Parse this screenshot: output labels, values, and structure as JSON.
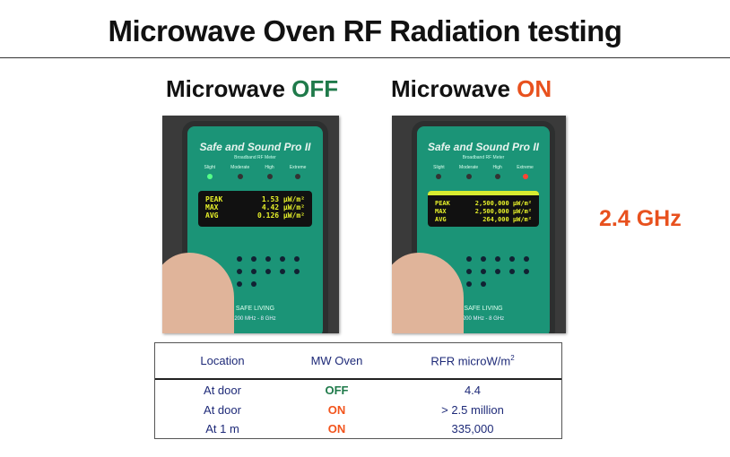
{
  "title": "Microwave Oven RF Radiation testing",
  "panels": [
    {
      "label_prefix": "Microwave ",
      "label_state": "OFF",
      "device_name": "Safe and Sound Pro II",
      "device_subtitle": "Broadband RF Meter",
      "leds": [
        "Slight",
        "Moderate",
        "High",
        "Extreme"
      ],
      "active_led": 0,
      "readings": [
        [
          "PEAK",
          "1.53 µW/m²"
        ],
        [
          "MAX",
          "4.42 µW/m²"
        ],
        [
          "AVG",
          "0.126 µW/m²"
        ]
      ],
      "brand": "SAFE LIVING",
      "range": "200 MHz - 8 GHz"
    },
    {
      "label_prefix": "Microwave ",
      "label_state": "ON",
      "device_name": "Safe and Sound Pro II",
      "device_subtitle": "Broadband RF Meter",
      "leds": [
        "Slight",
        "Moderate",
        "High",
        "Extreme"
      ],
      "active_led": 3,
      "readings": [
        [
          "PEAK",
          "2,500,000 µW/m²"
        ],
        [
          "MAX",
          "2,500,000 µW/m²"
        ],
        [
          "AVG",
          "264,000 µW/m²"
        ]
      ],
      "brand": "SAFE LIVING",
      "range": "200 MHz - 8 GHz"
    }
  ],
  "frequency": "2.4 GHz",
  "table": {
    "headers": [
      "Location",
      "MW Oven",
      "RFR microW/m",
      "2"
    ],
    "rows": [
      [
        "At door",
        "OFF",
        "4.4"
      ],
      [
        "At door",
        "ON",
        "> 2.5 million"
      ],
      [
        "At 1 m",
        "ON",
        "335,000"
      ]
    ]
  },
  "colors": {
    "off": "#1f7a4a",
    "on": "#e8511e",
    "table_text": "#1e2a78"
  }
}
